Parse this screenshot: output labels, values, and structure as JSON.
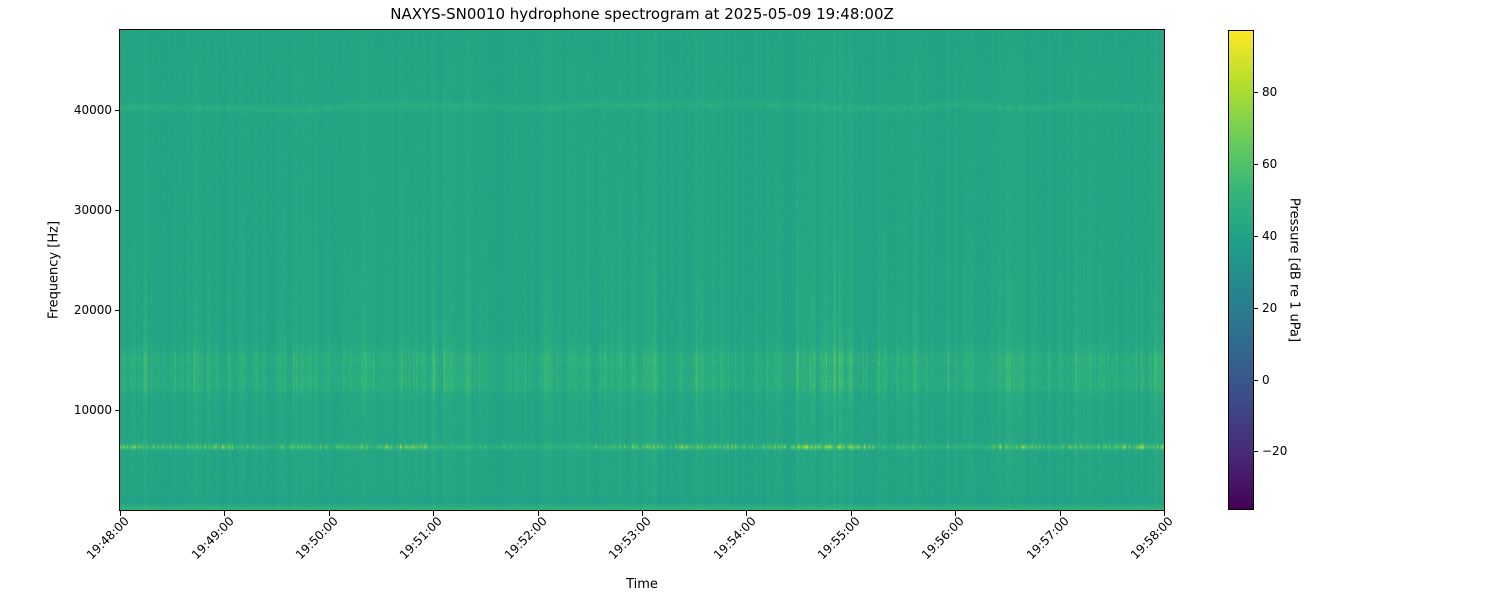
{
  "chart_data": {
    "type": "heatmap",
    "subtype": "spectrogram",
    "title": "NAXYS-SN0010 hydrophone spectrogram at 2025-05-09 19:48:00Z",
    "xlabel": "Time",
    "ylabel": "Frequency [Hz]",
    "x_axis": {
      "start": "19:48:00",
      "end": "19:58:00",
      "minutes_span": 10,
      "tick_rotation_deg": 45,
      "tick_labels": [
        "19:48:00",
        "19:49:00",
        "19:50:00",
        "19:51:00",
        "19:52:00",
        "19:53:00",
        "19:54:00",
        "19:55:00",
        "19:56:00",
        "19:57:00",
        "19:58:00"
      ]
    },
    "y_axis": {
      "lim_hz": [
        0,
        48000
      ],
      "ticks_hz": [
        10000,
        20000,
        30000,
        40000
      ]
    },
    "colorbar": {
      "label": "Pressure [dB re 1 uPa]",
      "vmin": -36,
      "vmax": 97,
      "ticks": [
        80,
        60,
        40,
        20,
        0,
        -20
      ],
      "colormap": "viridis",
      "stops": [
        [
          0,
          "#440154"
        ],
        [
          0.111,
          "#482878"
        ],
        [
          0.222,
          "#3e4989"
        ],
        [
          0.333,
          "#31688e"
        ],
        [
          0.444,
          "#26828e"
        ],
        [
          0.556,
          "#1f9e89"
        ],
        [
          0.667,
          "#35b779"
        ],
        [
          0.778,
          "#6dcd59"
        ],
        [
          0.889,
          "#b4de2c"
        ],
        [
          1,
          "#fde725"
        ]
      ]
    },
    "background_level_db": 42,
    "features": [
      {
        "name": "tonal-line-6300hz",
        "frequency_hz": 6300,
        "peak_db": 95,
        "description": "bright intermittent narrowband tone with yellow speckle bursts"
      },
      {
        "name": "broadband-band-12-16khz",
        "frequency_hz_range": [
          11800,
          16500
        ],
        "level_db_range": [
          46,
          58
        ],
        "description": "elevated speckled broadband energy, strongest near 13 and 15 kHz"
      },
      {
        "name": "faint-line-40300hz",
        "frequency_hz": 40300,
        "level_db": 46,
        "description": "faint wavy narrowband line near top of band"
      },
      {
        "name": "low-frequency-edge",
        "frequency_hz_range": [
          0,
          650
        ],
        "level_db": 52,
        "description": "bright strip along bottom edge of spectrogram"
      },
      {
        "name": "vertical-striations",
        "description": "fine broadband impulsive vertical streaks across all frequencies, strongest 8-25 kHz"
      }
    ],
    "render": {
      "tonal_sigma_hz": 170,
      "tonal_gain_db": 50,
      "striation_gain_db": 2.2,
      "band_humps": [
        [
          15100,
          650,
          0.9
        ],
        [
          13100,
          800,
          0.7
        ],
        [
          12300,
          400,
          0.45
        ],
        [
          14000,
          1800,
          0.25
        ]
      ],
      "band_speckle_gain_db": 9,
      "faint_line_sigma_hz": 260,
      "faint_line_gain_db": 4.5,
      "low_edge_gain_db": 10,
      "pixel_noise_db": 2.4
    }
  }
}
